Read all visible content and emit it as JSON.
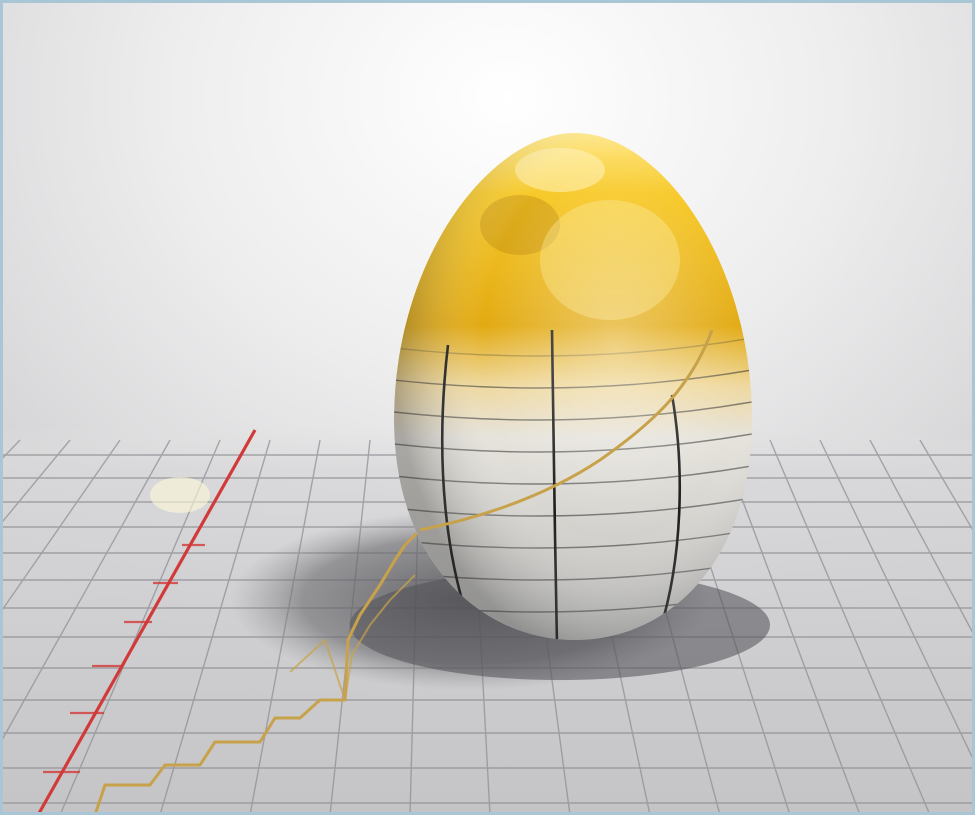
{
  "image": {
    "subject": "golden-egg-on-graph-grid",
    "colors": {
      "background": "#e9e9ea",
      "grid_line": "#8f9094",
      "floor": "#c9c9cb",
      "gold_light": "#ffe07a",
      "gold_mid": "#e6b21a",
      "gold_dark": "#b27e0c",
      "silver": "#d7d7d6",
      "egg_grid": "#2a2a2a",
      "red_axis": "#d23a3a",
      "graph_line": "#c7a24a",
      "shadow": "#6d6d70",
      "frame_border": "#a8c6d6"
    }
  }
}
